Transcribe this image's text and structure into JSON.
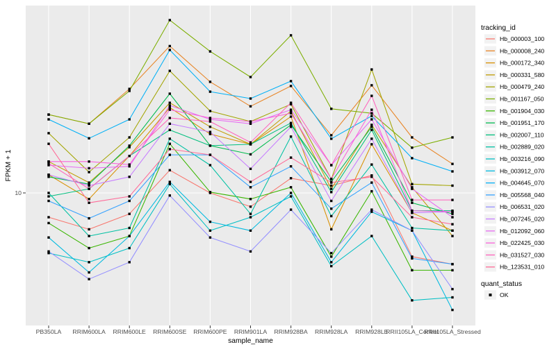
{
  "figure": {
    "background": "#FFFFFF",
    "panel_background": "#EBEBEB",
    "grid_color": "#FFFFFF",
    "tick_color": "#333333",
    "axis_text_color": "#4D4D4D",
    "point_color": "#000000"
  },
  "chart_data": {
    "type": "line",
    "title": "",
    "xlabel": "sample_name",
    "ylabel": "FPKM + 1",
    "y_scale": "log10",
    "grid": true,
    "legend_position": "right",
    "y_ticks": [
      {
        "label": "10",
        "value": 10
      }
    ],
    "y_range_approx": [
      2.2,
      110
    ],
    "categories": [
      "PB350LA",
      "RRIM600LA",
      "RRIM600LE",
      "RRIM600SE",
      "RRIM600PE",
      "RRIM901LA",
      "RRIM928BA",
      "RRIM928LA",
      "RRIM928LE",
      "RRII105LA_Control",
      "RRII105LA_Stressed"
    ],
    "legend": {
      "color_title": "tracking_id",
      "shape_title": "quant_status",
      "shape_items": [
        {
          "label": "OK",
          "shape": "filled-square",
          "color": "#000000"
        }
      ]
    },
    "point_shape": "square",
    "series": [
      {
        "name": "Hb_000003_100",
        "color": "#F8766D",
        "values": [
          7.5,
          6.5,
          7.8,
          13.1,
          10.0,
          8.5,
          11.9,
          10.9,
          12.3,
          4.7,
          4.3
        ]
      },
      {
        "name": "Hb_000008_240",
        "color": "#E88526",
        "values": [
          25.3,
          22.7,
          34.3,
          57.0,
          37.3,
          27.9,
          35.5,
          19.8,
          35.8,
          19.3,
          14.1
        ]
      },
      {
        "name": "Hb_000172_340",
        "color": "#D89000",
        "values": [
          12.4,
          9.3,
          15.5,
          27.5,
          20.1,
          17.8,
          24.7,
          6.5,
          17.8,
          7.9,
          6.4
        ]
      },
      {
        "name": "Hb_000331_580",
        "color": "#C09B00",
        "values": [
          14.5,
          11.3,
          17.2,
          29.1,
          21.9,
          17.8,
          26.4,
          10.5,
          22.4,
          10.7,
          6.0
        ]
      },
      {
        "name": "Hb_000479_240",
        "color": "#A3A500",
        "values": [
          20.3,
          12.8,
          19.3,
          42.5,
          26.4,
          23.3,
          28.6,
          11.8,
          43.2,
          11.1,
          10.9
        ]
      },
      {
        "name": "Hb_001167_050",
        "color": "#7CAE00",
        "values": [
          25.3,
          22.7,
          33.5,
          77.5,
          53.5,
          39.5,
          64.7,
          27.1,
          25.7,
          17.1,
          19.3
        ]
      },
      {
        "name": "Hb_001904_030",
        "color": "#39B600",
        "values": [
          7.0,
          5.2,
          6.0,
          17.9,
          10.1,
          9.3,
          10.7,
          4.7,
          10.2,
          4.0,
          4.0
        ]
      },
      {
        "name": "Hb_001951_170",
        "color": "#00BB4E",
        "values": [
          12.1,
          11.1,
          17.5,
          32.4,
          17.5,
          15.8,
          22.4,
          11.4,
          21.9,
          8.9,
          7.8
        ]
      },
      {
        "name": "Hb_002007_110",
        "color": "#00BF7D",
        "values": [
          9.6,
          10.5,
          15.5,
          21.1,
          17.5,
          17.8,
          22.9,
          10.1,
          21.1,
          8.1,
          8.1
        ]
      },
      {
        "name": "Hb_002889_020",
        "color": "#00C1A3",
        "values": [
          10.0,
          6.0,
          6.6,
          19.0,
          13.9,
          7.8,
          19.5,
          7.6,
          14.0,
          6.6,
          6.4
        ]
      },
      {
        "name": "Hb_003216_090",
        "color": "#00BFC4",
        "values": [
          4.9,
          4.4,
          5.2,
          11.1,
          6.4,
          7.5,
          9.6,
          4.2,
          6.0,
          2.8,
          2.9
        ]
      },
      {
        "name": "Hb_003912_070",
        "color": "#00BAE0",
        "values": [
          5.9,
          3.9,
          6.0,
          11.4,
          7.1,
          6.4,
          10.0,
          4.4,
          8.0,
          6.4,
          2.5
        ]
      },
      {
        "name": "Hb_004645_070",
        "color": "#00B0F6",
        "values": [
          23.9,
          19.1,
          23.9,
          54.4,
          33.2,
          30.6,
          37.6,
          19.0,
          24.9,
          15.1,
          12.9
        ]
      },
      {
        "name": "Hb_005568_040",
        "color": "#35A2FF",
        "values": [
          9.1,
          7.4,
          9.1,
          15.7,
          15.7,
          10.7,
          13.7,
          8.3,
          11.3,
          4.6,
          4.3
        ]
      },
      {
        "name": "Hb_006531_020",
        "color": "#9590FF",
        "values": [
          5.0,
          3.6,
          4.4,
          9.7,
          5.9,
          5.0,
          8.2,
          4.9,
          8.2,
          6.4,
          3.2
        ]
      },
      {
        "name": "Hb_007245_020",
        "color": "#C77CFF",
        "values": [
          12.4,
          10.9,
          12.1,
          22.7,
          20.6,
          13.3,
          21.9,
          9.1,
          19.0,
          7.9,
          8.0
        ]
      },
      {
        "name": "Hb_012092_060",
        "color": "#E76BF3",
        "values": [
          13.9,
          13.4,
          13.7,
          28.2,
          23.9,
          22.7,
          26.8,
          13.9,
          23.9,
          10.5,
          7.5
        ]
      },
      {
        "name": "Hb_022425_030",
        "color": "#FA62DB",
        "values": [
          14.5,
          14.5,
          14.0,
          26.8,
          24.3,
          23.3,
          25.7,
          11.8,
          26.8,
          8.1,
          8.0
        ]
      },
      {
        "name": "Hb_031527_030",
        "color": "#FF62BC",
        "values": [
          14.2,
          10.5,
          15.5,
          24.3,
          23.3,
          18.2,
          29.1,
          13.9,
          31.6,
          9.2,
          9.2
        ]
      },
      {
        "name": "Hb_123531_010",
        "color": "#FF6A98",
        "values": [
          17.9,
          8.9,
          9.6,
          16.8,
          15.7,
          11.4,
          15.2,
          11.3,
          12.1,
          7.5,
          6.9
        ]
      }
    ]
  }
}
